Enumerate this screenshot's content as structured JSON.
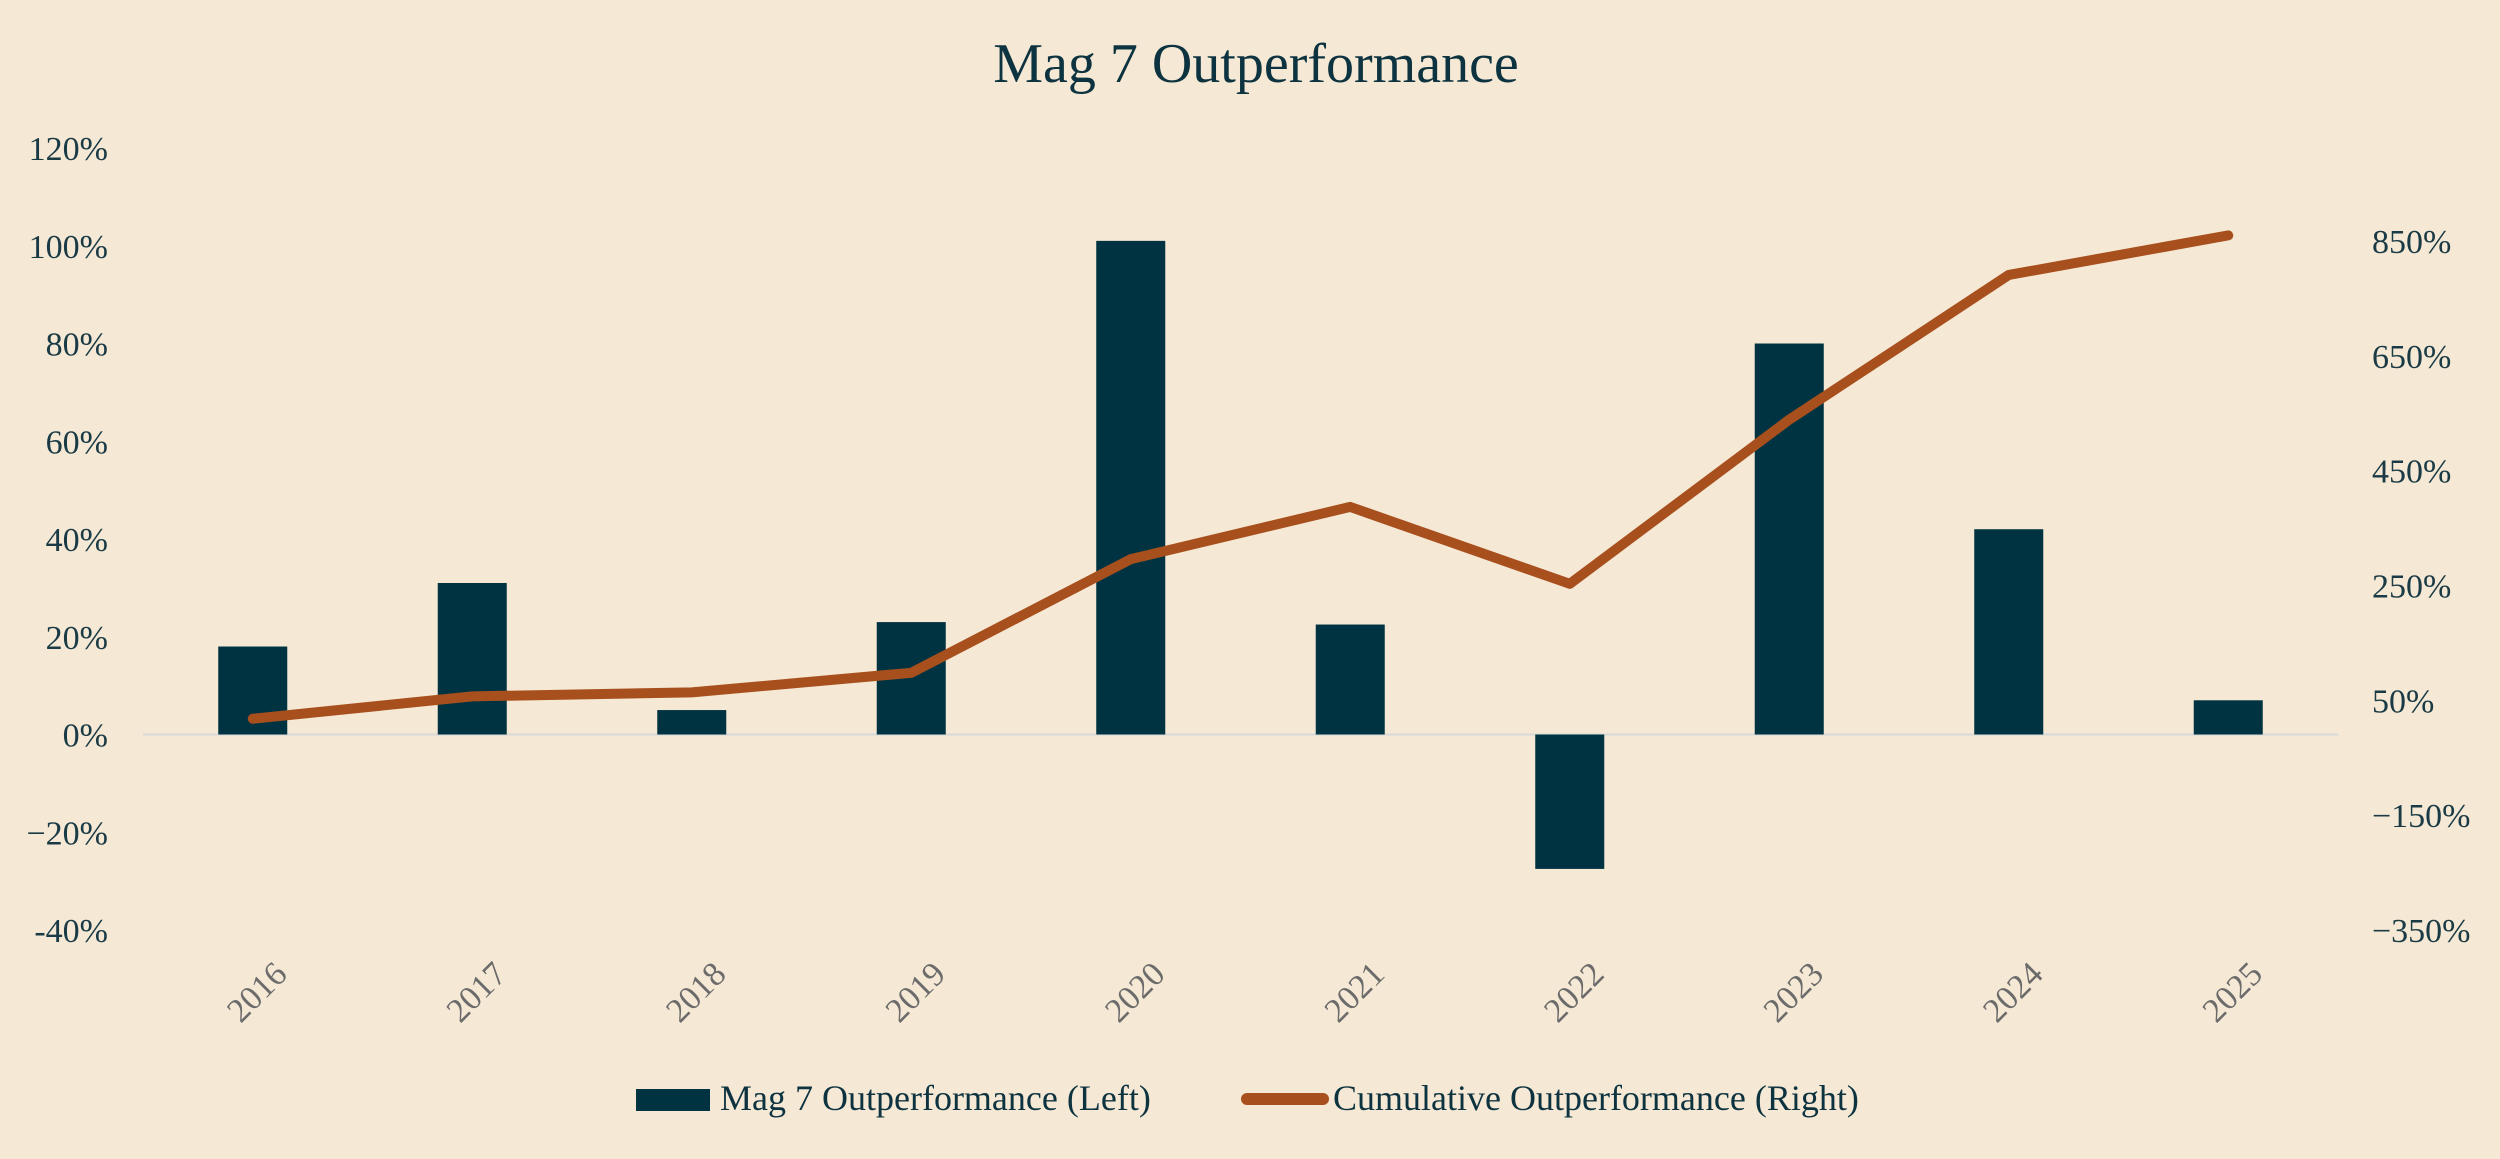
{
  "chart_data": {
    "type": "bar+line",
    "title": "Mag 7 Outperformance",
    "categories": [
      "2016",
      "2017",
      "2018",
      "2019",
      "2020",
      "2021",
      "2022",
      "2023",
      "2024",
      "2025"
    ],
    "series": [
      {
        "name": "Mag 7 Outperformance (Left)",
        "type": "bar",
        "axis": "left",
        "values": [
          18,
          31,
          5,
          23,
          101,
          22.5,
          -27.5,
          80,
          42,
          7
        ]
      },
      {
        "name": "Cumulative Outperformance (Right)",
        "type": "line",
        "axis": "right",
        "values": [
          18,
          57,
          64,
          98,
          296,
          387,
          253,
          539,
          791,
          860
        ]
      }
    ],
    "left_axis": {
      "ylim": [
        -40,
        120
      ],
      "ticks": [
        -40,
        -20,
        0,
        20,
        40,
        60,
        80,
        100,
        120
      ],
      "tick_labels": [
        "-40%",
        "−20%",
        "0%",
        "20%",
        "40%",
        "60%",
        "80%",
        "100%",
        "120%"
      ]
    },
    "right_axis": {
      "ylim": [
        -350,
        1000
      ],
      "ticks": [
        -350,
        -150,
        50,
        250,
        450,
        650,
        850
      ],
      "tick_labels": [
        "−350%",
        "−150%",
        "50%",
        "250%",
        "450%",
        "650%",
        "850%"
      ]
    },
    "legend_position": "bottom-center",
    "colors": {
      "bar": "#003341",
      "line": "#a84f1e",
      "zero_line": "#d9d9d9",
      "background": "#f5e8d4"
    }
  }
}
